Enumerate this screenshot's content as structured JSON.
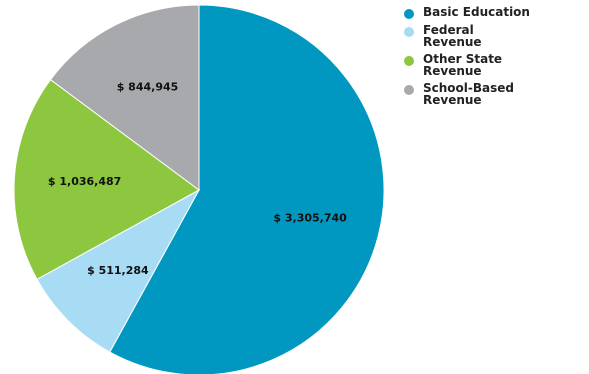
{
  "chart_data": {
    "type": "pie",
    "title": "",
    "categories": [
      "Basic Education",
      "Federal Revenue",
      "Other State Revenue",
      "School-Based Revenue"
    ],
    "values": [
      3305740,
      511284,
      1036487,
      844945
    ],
    "value_labels": [
      "$ 3,305,740",
      "$ 511,284",
      "$ 1,036,487",
      "$ 844,945"
    ],
    "colors": [
      "#0098c0",
      "#a8dcf4",
      "#8dc63f",
      "#a7a9ac"
    ],
    "start_angle_deg": 0,
    "direction": "clockwise",
    "legend": {
      "position": "top-right",
      "marker": "circle"
    }
  }
}
